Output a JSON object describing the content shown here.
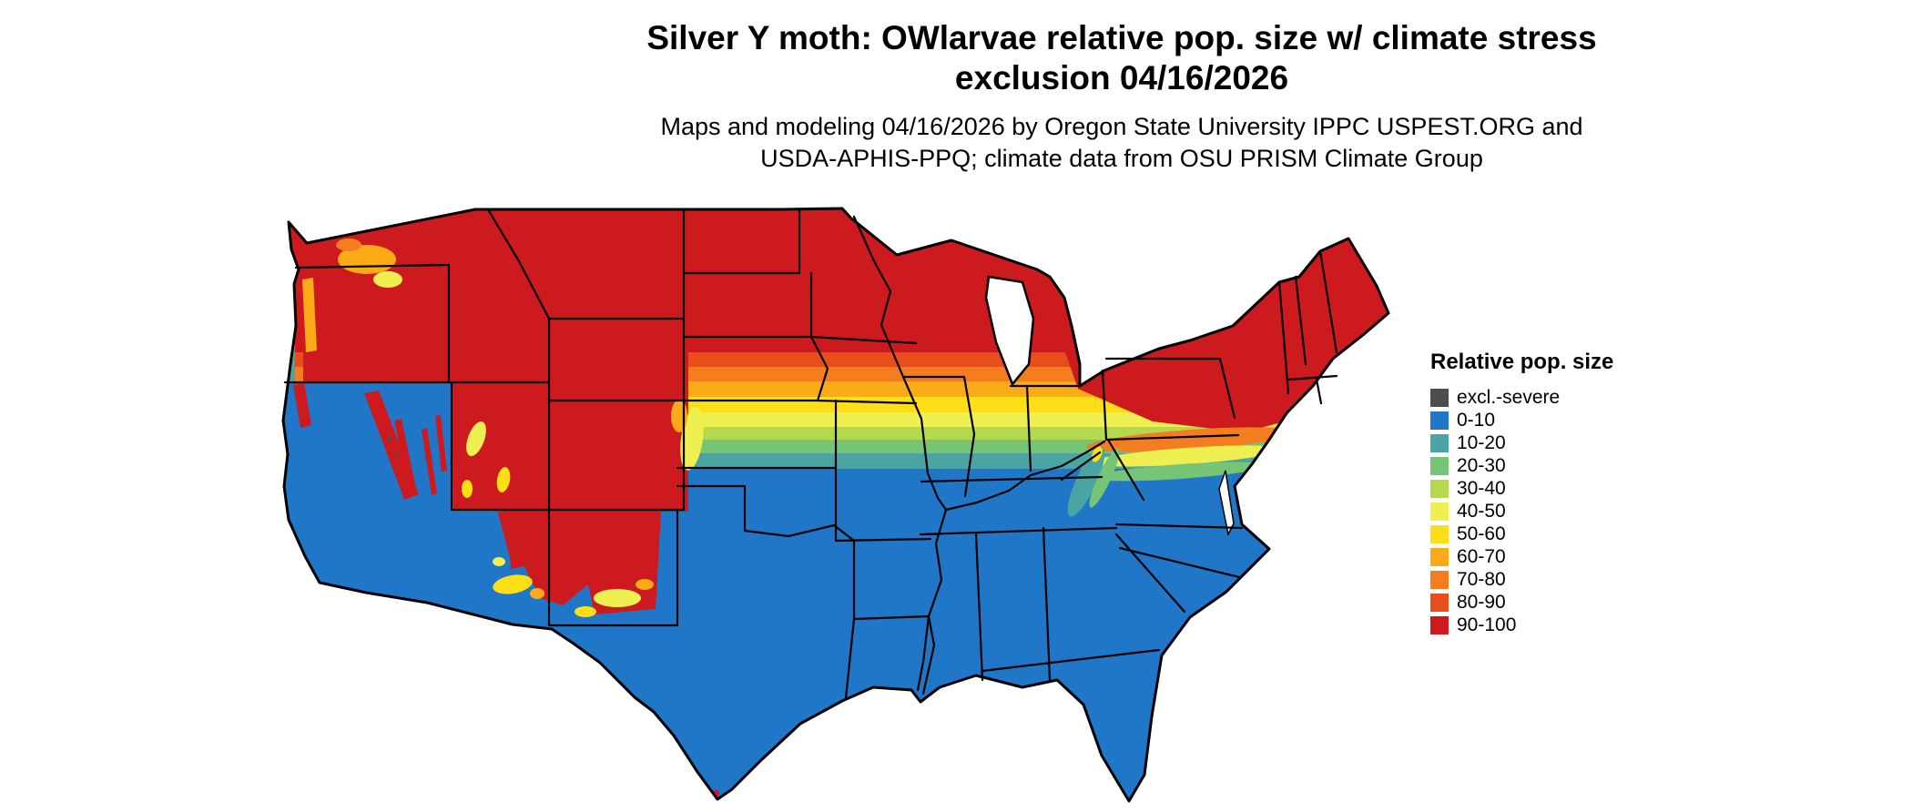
{
  "title": {
    "line1": "Silver Y moth: OWlarvae relative pop. size w/ climate stress",
    "line2": "exclusion 04/16/2026"
  },
  "subtitle": {
    "line1": "Maps and modeling 04/16/2026 by Oregon State University IPPC USPEST.ORG and",
    "line2": "USDA-APHIS-PPQ; climate data from OSU PRISM Climate Group"
  },
  "legend": {
    "title": "Relative pop. size",
    "entries": [
      {
        "label": "excl.-severe",
        "color": "#4d4d4d"
      },
      {
        "label": "0-10",
        "color": "#2077c8"
      },
      {
        "label": "10-20",
        "color": "#4ba4a4"
      },
      {
        "label": "20-30",
        "color": "#76c476"
      },
      {
        "label": "30-40",
        "color": "#b5d94e"
      },
      {
        "label": "40-50",
        "color": "#eef051"
      },
      {
        "label": "50-60",
        "color": "#fede17"
      },
      {
        "label": "60-70",
        "color": "#fbab17"
      },
      {
        "label": "70-80",
        "color": "#f47d20"
      },
      {
        "label": "80-90",
        "color": "#e84e1b"
      },
      {
        "label": "90-100",
        "color": "#cd1a1f"
      }
    ]
  },
  "colors": {
    "background": "#ffffff",
    "state_border": "#000000",
    "water": "#ffffff",
    "text": "#000000"
  }
}
